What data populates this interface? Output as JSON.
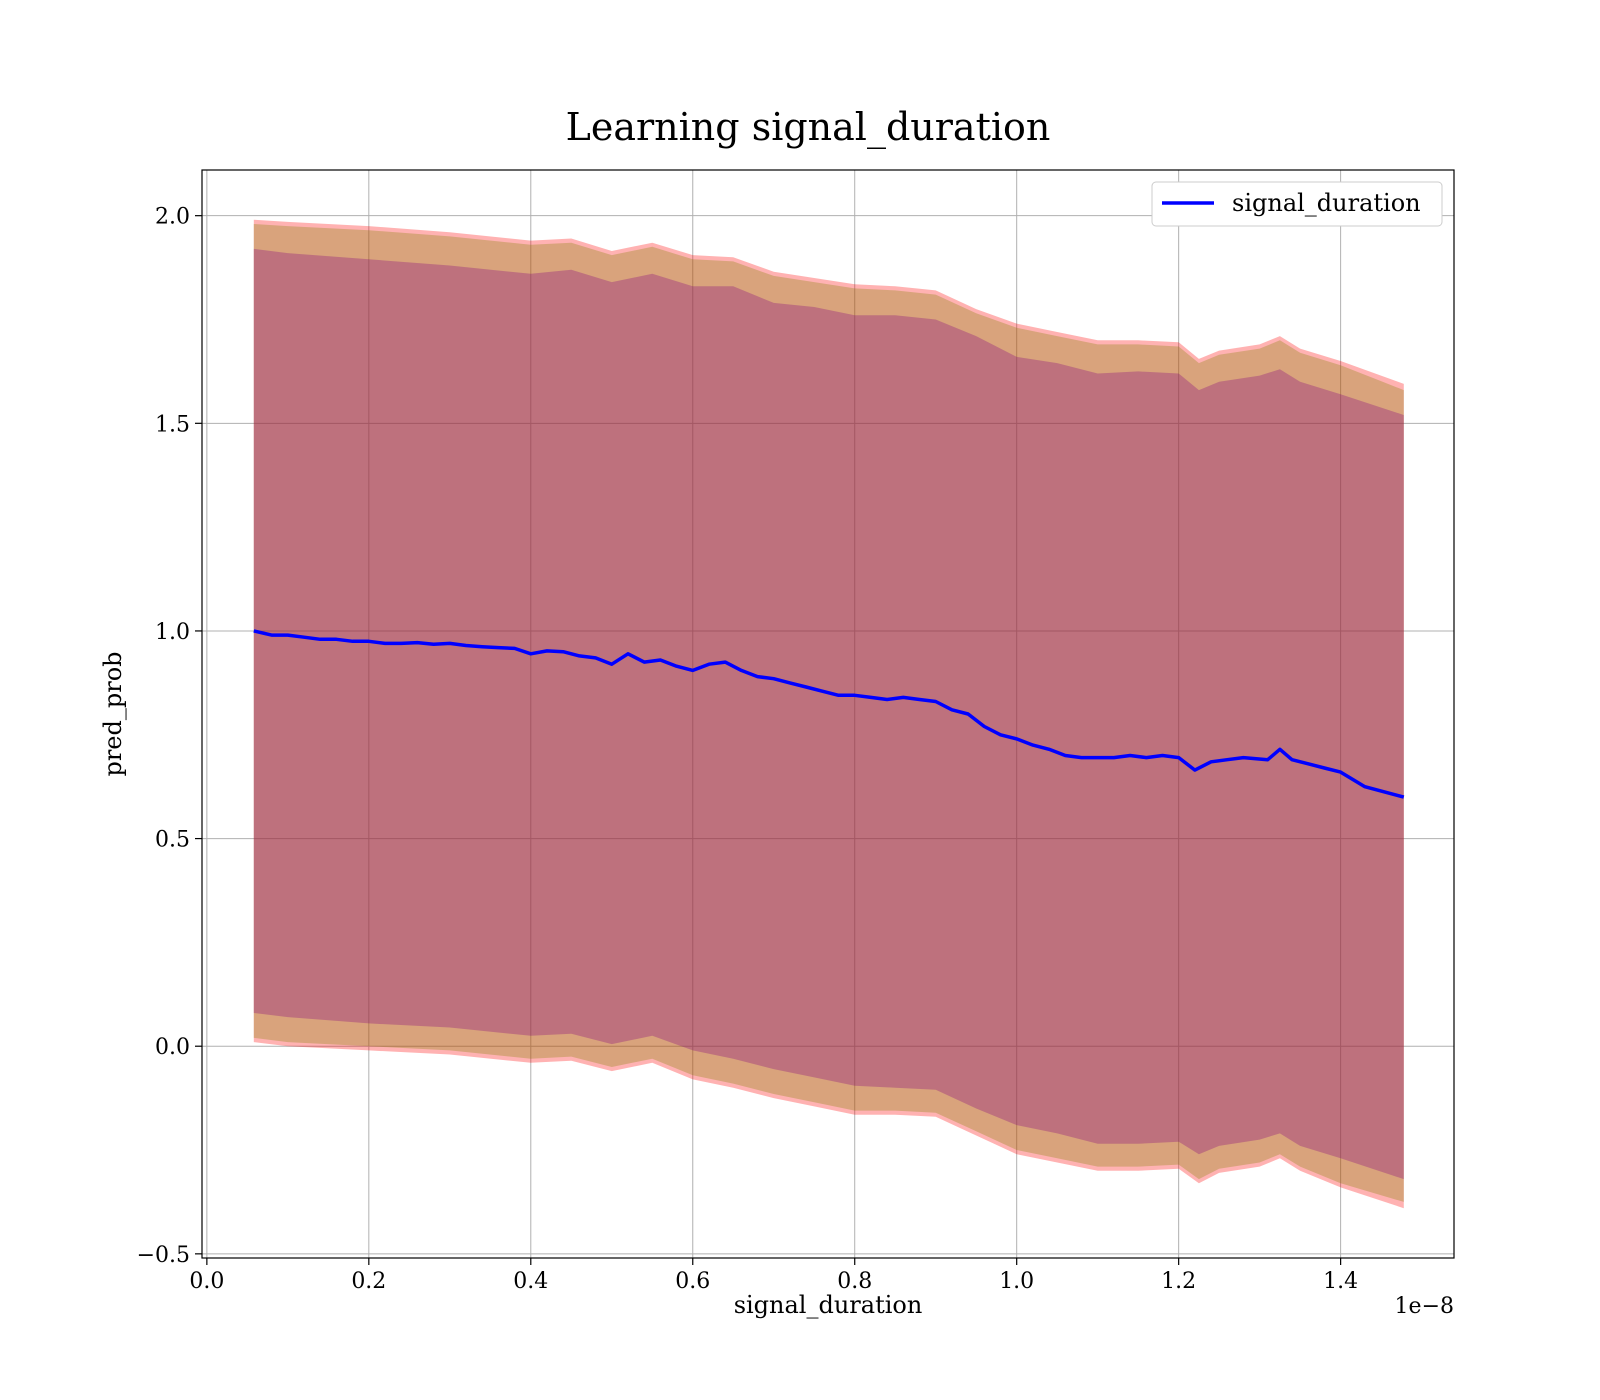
{
  "chart_data": {
    "type": "line",
    "title": "Learning signal_duration",
    "xlabel": "signal_duration",
    "ylabel": "pred_prob",
    "x_offset_text": "1e−8",
    "xlim": [
      -0.006,
      1.54
    ],
    "ylim": [
      -0.51,
      2.11
    ],
    "x_scale_factor": 1e-08,
    "xticks": [
      0.0,
      0.2,
      0.4,
      0.6,
      0.8,
      1.0,
      1.2,
      1.4
    ],
    "xtick_labels": [
      "0.0",
      "0.2",
      "0.4",
      "0.6",
      "0.8",
      "1.0",
      "1.2",
      "1.4"
    ],
    "yticks": [
      -0.5,
      0.0,
      0.5,
      1.0,
      1.5,
      2.0
    ],
    "ytick_labels": [
      "−0.5",
      "0.0",
      "0.5",
      "1.0",
      "1.5",
      "2.0"
    ],
    "grid": true,
    "legend_position": "top-right",
    "series": [
      {
        "name": "signal_duration",
        "color": "#0000ff",
        "x": [
          0.058,
          0.08,
          0.1,
          0.12,
          0.14,
          0.16,
          0.18,
          0.2,
          0.22,
          0.24,
          0.26,
          0.28,
          0.3,
          0.32,
          0.34,
          0.36,
          0.38,
          0.4,
          0.42,
          0.44,
          0.46,
          0.48,
          0.5,
          0.52,
          0.54,
          0.56,
          0.58,
          0.6,
          0.62,
          0.64,
          0.66,
          0.68,
          0.7,
          0.72,
          0.74,
          0.76,
          0.78,
          0.8,
          0.82,
          0.84,
          0.86,
          0.88,
          0.9,
          0.92,
          0.94,
          0.96,
          0.98,
          1.0,
          1.02,
          1.04,
          1.06,
          1.08,
          1.1,
          1.12,
          1.14,
          1.16,
          1.18,
          1.2,
          1.22,
          1.24,
          1.26,
          1.28,
          1.31,
          1.325,
          1.34,
          1.36,
          1.38,
          1.4,
          1.43,
          1.478
        ],
        "values": [
          1.0,
          0.99,
          0.99,
          0.985,
          0.98,
          0.98,
          0.975,
          0.975,
          0.97,
          0.97,
          0.972,
          0.968,
          0.97,
          0.965,
          0.962,
          0.96,
          0.958,
          0.945,
          0.952,
          0.95,
          0.94,
          0.935,
          0.92,
          0.945,
          0.925,
          0.93,
          0.915,
          0.905,
          0.92,
          0.925,
          0.905,
          0.89,
          0.885,
          0.875,
          0.865,
          0.855,
          0.845,
          0.845,
          0.84,
          0.835,
          0.84,
          0.835,
          0.83,
          0.81,
          0.8,
          0.77,
          0.75,
          0.74,
          0.725,
          0.715,
          0.7,
          0.695,
          0.695,
          0.695,
          0.7,
          0.695,
          0.7,
          0.695,
          0.665,
          0.685,
          0.69,
          0.695,
          0.69,
          0.715,
          0.69,
          0.68,
          0.67,
          0.66,
          0.625,
          0.6
        ]
      }
    ],
    "bands": [
      {
        "fill": "#ff0000",
        "opacity": 0.3,
        "x": [
          0.058,
          0.1,
          0.2,
          0.3,
          0.4,
          0.45,
          0.5,
          0.55,
          0.6,
          0.65,
          0.7,
          0.75,
          0.8,
          0.85,
          0.9,
          0.95,
          1.0,
          1.05,
          1.1,
          1.15,
          1.2,
          1.225,
          1.25,
          1.3,
          1.325,
          1.35,
          1.4,
          1.478
        ],
        "upper": [
          1.99,
          1.985,
          1.975,
          1.96,
          1.94,
          1.945,
          1.915,
          1.935,
          1.905,
          1.9,
          1.865,
          1.85,
          1.835,
          1.83,
          1.82,
          1.775,
          1.74,
          1.72,
          1.7,
          1.7,
          1.695,
          1.655,
          1.675,
          1.69,
          1.71,
          1.68,
          1.65,
          1.595
        ],
        "lower": [
          0.01,
          0.0,
          -0.01,
          -0.02,
          -0.04,
          -0.035,
          -0.06,
          -0.04,
          -0.08,
          -0.1,
          -0.125,
          -0.145,
          -0.165,
          -0.165,
          -0.17,
          -0.215,
          -0.26,
          -0.28,
          -0.3,
          -0.3,
          -0.295,
          -0.33,
          -0.305,
          -0.29,
          -0.27,
          -0.3,
          -0.34,
          -0.39
        ]
      },
      {
        "fill": "#808000",
        "opacity": 0.3,
        "x": [
          0.058,
          0.1,
          0.2,
          0.3,
          0.4,
          0.45,
          0.5,
          0.55,
          0.6,
          0.65,
          0.7,
          0.75,
          0.8,
          0.85,
          0.9,
          0.95,
          1.0,
          1.05,
          1.1,
          1.15,
          1.2,
          1.225,
          1.25,
          1.3,
          1.325,
          1.35,
          1.4,
          1.478
        ],
        "upper": [
          1.98,
          1.975,
          1.965,
          1.95,
          1.93,
          1.935,
          1.905,
          1.925,
          1.895,
          1.89,
          1.855,
          1.84,
          1.825,
          1.82,
          1.81,
          1.765,
          1.73,
          1.71,
          1.69,
          1.69,
          1.685,
          1.645,
          1.665,
          1.68,
          1.7,
          1.67,
          1.64,
          1.58
        ],
        "lower": [
          0.02,
          0.01,
          0.0,
          -0.01,
          -0.03,
          -0.025,
          -0.05,
          -0.03,
          -0.07,
          -0.09,
          -0.115,
          -0.135,
          -0.155,
          -0.155,
          -0.16,
          -0.205,
          -0.25,
          -0.27,
          -0.29,
          -0.29,
          -0.285,
          -0.32,
          -0.295,
          -0.28,
          -0.26,
          -0.29,
          -0.33,
          -0.375
        ]
      },
      {
        "fill": "#800080",
        "opacity": 0.3,
        "x": [
          0.058,
          0.1,
          0.2,
          0.3,
          0.4,
          0.45,
          0.5,
          0.55,
          0.6,
          0.65,
          0.7,
          0.75,
          0.8,
          0.85,
          0.9,
          0.95,
          1.0,
          1.05,
          1.1,
          1.15,
          1.2,
          1.225,
          1.25,
          1.3,
          1.325,
          1.35,
          1.4,
          1.478
        ],
        "upper": [
          1.92,
          1.91,
          1.895,
          1.88,
          1.86,
          1.87,
          1.84,
          1.86,
          1.83,
          1.83,
          1.79,
          1.78,
          1.76,
          1.76,
          1.75,
          1.71,
          1.66,
          1.645,
          1.62,
          1.625,
          1.62,
          1.58,
          1.6,
          1.615,
          1.63,
          1.6,
          1.57,
          1.52
        ],
        "lower": [
          0.08,
          0.07,
          0.055,
          0.045,
          0.025,
          0.03,
          0.005,
          0.025,
          -0.01,
          -0.03,
          -0.055,
          -0.075,
          -0.095,
          -0.1,
          -0.105,
          -0.15,
          -0.19,
          -0.21,
          -0.235,
          -0.235,
          -0.23,
          -0.26,
          -0.24,
          -0.225,
          -0.21,
          -0.24,
          -0.27,
          -0.32
        ]
      }
    ]
  }
}
